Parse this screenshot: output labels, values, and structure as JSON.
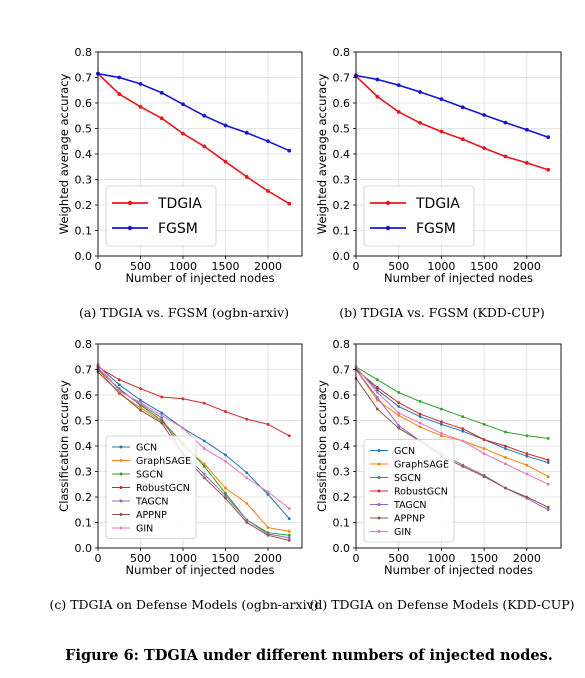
{
  "figure_caption": "Figure 6: TDGIA under different numbers of injected nodes.",
  "chart_data": [
    {
      "type": "line",
      "subcaption": "(a)  TDGIA vs. FGSM (ogbn-arxiv)",
      "xlabel": "Number of injected nodes",
      "ylabel": "Weighted average accuracy",
      "xlim": [
        0,
        2400
      ],
      "ylim": [
        0,
        0.8
      ],
      "xticks": [
        0,
        500,
        1000,
        1500,
        2000
      ],
      "yticks": [
        0.0,
        0.1,
        0.2,
        0.3,
        0.4,
        0.5,
        0.6,
        0.7,
        0.8
      ],
      "grid": true,
      "legend": "bottom-left",
      "legend_size": "large",
      "x": [
        0,
        250,
        500,
        750,
        1000,
        1250,
        1500,
        1750,
        2000,
        2250
      ],
      "series": [
        {
          "name": "TDGIA",
          "color": "#e8161b",
          "values": [
            0.715,
            0.635,
            0.585,
            0.54,
            0.48,
            0.43,
            0.37,
            0.31,
            0.255,
            0.205
          ]
        },
        {
          "name": "FGSM",
          "color": "#1515d8",
          "values": [
            0.715,
            0.7,
            0.675,
            0.64,
            0.595,
            0.55,
            0.512,
            0.483,
            0.45,
            0.413
          ]
        }
      ]
    },
    {
      "type": "line",
      "subcaption": "(b)  TDGIA vs. FGSM (KDD-CUP)",
      "xlabel": "Number of injected nodes",
      "ylabel": "Weighted average accuracy",
      "xlim": [
        0,
        2400
      ],
      "ylim": [
        0,
        0.8
      ],
      "xticks": [
        0,
        500,
        1000,
        1500,
        2000
      ],
      "yticks": [
        0.0,
        0.1,
        0.2,
        0.3,
        0.4,
        0.5,
        0.6,
        0.7,
        0.8
      ],
      "grid": true,
      "legend": "bottom-left",
      "legend_size": "large",
      "x": [
        0,
        250,
        500,
        750,
        1000,
        1250,
        1500,
        1750,
        2000,
        2250
      ],
      "series": [
        {
          "name": "TDGIA",
          "color": "#e8161b",
          "values": [
            0.705,
            0.625,
            0.565,
            0.522,
            0.488,
            0.458,
            0.423,
            0.39,
            0.365,
            0.338
          ]
        },
        {
          "name": "FGSM",
          "color": "#1515d8",
          "values": [
            0.708,
            0.692,
            0.67,
            0.643,
            0.615,
            0.583,
            0.553,
            0.523,
            0.495,
            0.466
          ]
        }
      ]
    },
    {
      "type": "line",
      "subcaption": "(c)  TDGIA on Defense Models (ogbn-arxiv)",
      "xlabel": "Number of injected nodes",
      "ylabel": "Classification accuracy",
      "xlim": [
        0,
        2400
      ],
      "ylim": [
        0,
        0.8
      ],
      "xticks": [
        0,
        500,
        1000,
        1500,
        2000
      ],
      "yticks": [
        0.0,
        0.1,
        0.2,
        0.3,
        0.4,
        0.5,
        0.6,
        0.7,
        0.8
      ],
      "grid": true,
      "legend": "center-left",
      "legend_size": "small",
      "x": [
        0,
        250,
        500,
        750,
        1000,
        1250,
        1500,
        1750,
        2000,
        2250
      ],
      "series": [
        {
          "name": "GCN",
          "color": "#1f77b4",
          "values": [
            0.715,
            0.64,
            0.58,
            0.53,
            0.47,
            0.42,
            0.365,
            0.295,
            0.21,
            0.115
          ]
        },
        {
          "name": "GraphSAGE",
          "color": "#ff7f0e",
          "values": [
            0.7,
            0.605,
            0.55,
            0.495,
            0.4,
            0.33,
            0.235,
            0.175,
            0.08,
            0.065
          ]
        },
        {
          "name": "SGCN",
          "color": "#2ca02c",
          "values": [
            0.7,
            0.625,
            0.56,
            0.5,
            0.41,
            0.32,
            0.215,
            0.11,
            0.06,
            0.05
          ]
        },
        {
          "name": "RobustGCN",
          "color": "#d62728",
          "values": [
            0.71,
            0.66,
            0.625,
            0.592,
            0.585,
            0.568,
            0.535,
            0.505,
            0.485,
            0.44
          ]
        },
        {
          "name": "TAGCN",
          "color": "#9467bd",
          "values": [
            0.705,
            0.62,
            0.565,
            0.51,
            0.37,
            0.29,
            0.205,
            0.11,
            0.055,
            0.04
          ]
        },
        {
          "name": "APPNP",
          "color": "#8c564b",
          "values": [
            0.69,
            0.61,
            0.54,
            0.49,
            0.365,
            0.275,
            0.195,
            0.1,
            0.05,
            0.03
          ]
        },
        {
          "name": "GIN",
          "color": "#e377c2",
          "values": [
            0.72,
            0.615,
            0.57,
            0.52,
            0.47,
            0.39,
            0.34,
            0.275,
            0.22,
            0.155
          ]
        }
      ]
    },
    {
      "type": "line",
      "subcaption": "(d)  TDGIA on Defense Models (KDD-CUP)",
      "xlabel": "Number of injected nodes",
      "ylabel": "Classification accuracy",
      "xlim": [
        0,
        2400
      ],
      "ylim": [
        0,
        0.8
      ],
      "xticks": [
        0,
        500,
        1000,
        1500,
        2000
      ],
      "yticks": [
        0.0,
        0.1,
        0.2,
        0.3,
        0.4,
        0.5,
        0.6,
        0.7,
        0.8
      ],
      "grid": true,
      "legend": "bottom-left",
      "legend_size": "small",
      "x": [
        0,
        250,
        500,
        750,
        1000,
        1250,
        1500,
        1750,
        2000,
        2250
      ],
      "series": [
        {
          "name": "GCN",
          "color": "#1f77b4",
          "values": [
            0.705,
            0.62,
            0.555,
            0.515,
            0.485,
            0.458,
            0.425,
            0.39,
            0.36,
            0.335
          ]
        },
        {
          "name": "GraphSAGE",
          "color": "#ff7f0e",
          "values": [
            0.7,
            0.58,
            0.52,
            0.475,
            0.44,
            0.42,
            0.39,
            0.355,
            0.325,
            0.28
          ]
        },
        {
          "name": "SGCN",
          "color": "#2ca02c",
          "values": [
            0.71,
            0.66,
            0.61,
            0.575,
            0.545,
            0.515,
            0.485,
            0.455,
            0.44,
            0.43
          ]
        },
        {
          "name": "RobustGCN",
          "color": "#d62728",
          "values": [
            0.7,
            0.63,
            0.57,
            0.525,
            0.495,
            0.468,
            0.425,
            0.4,
            0.37,
            0.345
          ]
        },
        {
          "name": "TAGCN",
          "color": "#9467bd",
          "values": [
            0.7,
            0.59,
            0.48,
            0.42,
            0.37,
            0.325,
            0.285,
            0.235,
            0.195,
            0.15
          ]
        },
        {
          "name": "APPNP",
          "color": "#8c564b",
          "values": [
            0.665,
            0.545,
            0.47,
            0.42,
            0.36,
            0.32,
            0.28,
            0.235,
            0.2,
            0.16
          ]
        },
        {
          "name": "GIN",
          "color": "#e377c2",
          "values": [
            0.71,
            0.61,
            0.53,
            0.49,
            0.45,
            0.42,
            0.37,
            0.33,
            0.29,
            0.25
          ]
        }
      ]
    }
  ]
}
